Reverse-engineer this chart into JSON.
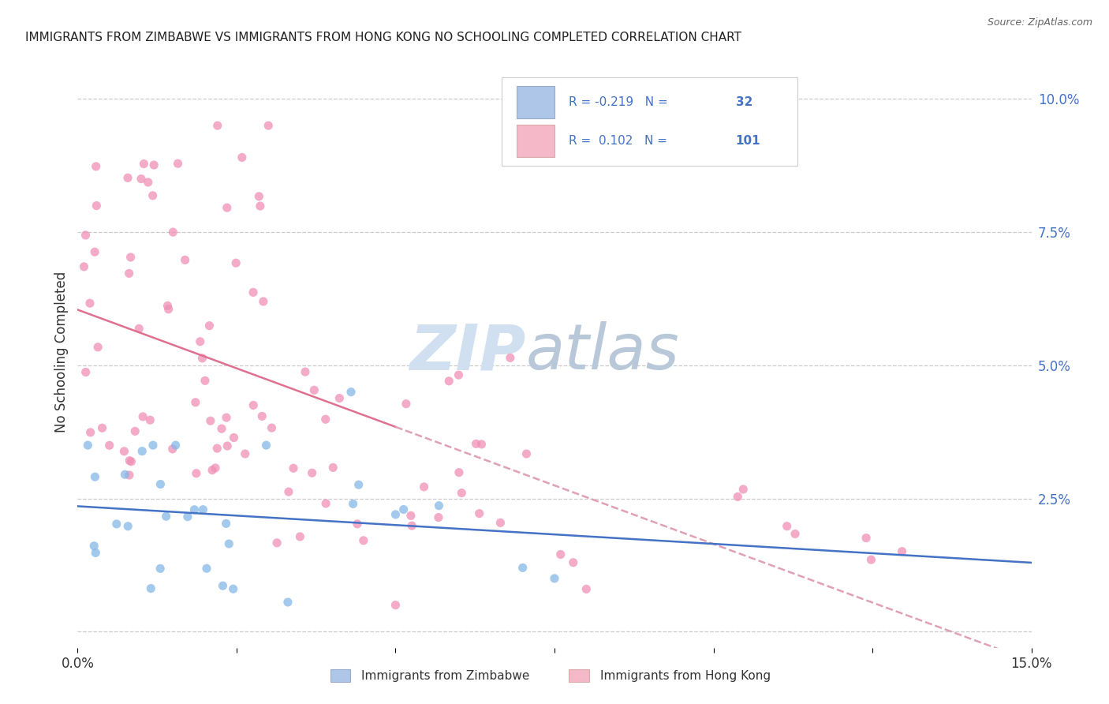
{
  "title": "IMMIGRANTS FROM ZIMBABWE VS IMMIGRANTS FROM HONG KONG NO SCHOOLING COMPLETED CORRELATION CHART",
  "source": "Source: ZipAtlas.com",
  "ylabel": "No Schooling Completed",
  "ytick_values": [
    0.0,
    0.025,
    0.05,
    0.075,
    0.1
  ],
  "xlim": [
    0.0,
    0.15
  ],
  "ylim": [
    -0.003,
    0.108
  ],
  "r_zimbabwe": -0.219,
  "n_zimbabwe": 32,
  "r_hongkong": 0.102,
  "n_hongkong": 101,
  "color_zimbabwe": "#85b8e8",
  "color_hongkong": "#f08fb5",
  "trendline_zimbabwe_color": "#4472c4",
  "trendline_hongkong_color": "#e07090",
  "trendline_hk_dash_color": "#e0a0b8",
  "legend_box_color": "#aec6e8",
  "legend_box_color2": "#f4b8c8",
  "watermark_zip": "ZIP",
  "watermark_atlas": "atlas",
  "watermark_color": "#d0e4f5",
  "watermark_atlas_color": "#c0c8d8",
  "background_color": "#ffffff",
  "grid_color": "#cccccc",
  "axis_label_color": "#4472c4",
  "title_fontsize": 11,
  "marker_size": 65,
  "marker_alpha": 0.75
}
